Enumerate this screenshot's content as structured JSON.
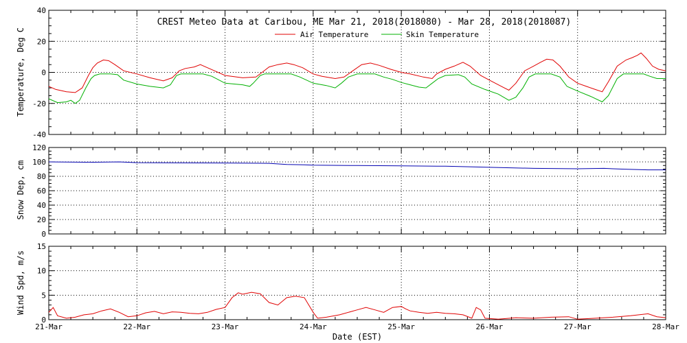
{
  "chart_data": [
    {
      "type": "line",
      "title": "CREST Meteo Data at Caribou, ME   Mar 21, 2018(2018080) - Mar 28, 2018(2018087)",
      "ylabel": "Temperature, Deg C",
      "ylim": [
        -40,
        40
      ],
      "yticks": [
        -40,
        -20,
        0,
        20,
        40
      ],
      "grid": true,
      "legend_position": "top-center",
      "x_domain": [
        0,
        7
      ],
      "series": [
        {
          "name": "Air Temperature",
          "color": "#e00000",
          "points": [
            [
              0,
              -9
            ],
            [
              0.08,
              -11
            ],
            [
              0.2,
              -12.5
            ],
            [
              0.3,
              -13
            ],
            [
              0.38,
              -10
            ],
            [
              0.45,
              -2
            ],
            [
              0.5,
              3
            ],
            [
              0.55,
              6
            ],
            [
              0.62,
              8
            ],
            [
              0.68,
              7.5
            ],
            [
              0.75,
              5
            ],
            [
              0.85,
              1
            ],
            [
              1,
              -1
            ],
            [
              1.15,
              -3.5
            ],
            [
              1.3,
              -5.5
            ],
            [
              1.4,
              -3.5
            ],
            [
              1.48,
              1
            ],
            [
              1.55,
              2.5
            ],
            [
              1.65,
              3.5
            ],
            [
              1.72,
              5
            ],
            [
              1.8,
              3
            ],
            [
              1.88,
              1
            ],
            [
              2,
              -2
            ],
            [
              2.2,
              -3.5
            ],
            [
              2.35,
              -3
            ],
            [
              2.42,
              0
            ],
            [
              2.5,
              3.5
            ],
            [
              2.6,
              5
            ],
            [
              2.7,
              6
            ],
            [
              2.78,
              5
            ],
            [
              2.88,
              3
            ],
            [
              3,
              -1
            ],
            [
              3.1,
              -2.5
            ],
            [
              3.25,
              -4
            ],
            [
              3.35,
              -3
            ],
            [
              3.45,
              1
            ],
            [
              3.55,
              5
            ],
            [
              3.65,
              6
            ],
            [
              3.75,
              4.5
            ],
            [
              3.88,
              2
            ],
            [
              4,
              0
            ],
            [
              4.1,
              -1
            ],
            [
              4.25,
              -3
            ],
            [
              4.35,
              -4
            ],
            [
              4.4,
              -1
            ],
            [
              4.5,
              2
            ],
            [
              4.6,
              4
            ],
            [
              4.7,
              6.5
            ],
            [
              4.78,
              4
            ],
            [
              4.9,
              -2
            ],
            [
              5,
              -5
            ],
            [
              5.1,
              -8
            ],
            [
              5.22,
              -11.5
            ],
            [
              5.3,
              -7
            ],
            [
              5.4,
              1
            ],
            [
              5.5,
              4
            ],
            [
              5.58,
              6.5
            ],
            [
              5.65,
              8.5
            ],
            [
              5.72,
              8
            ],
            [
              5.8,
              4
            ],
            [
              5.9,
              -3
            ],
            [
              6,
              -7
            ],
            [
              6.1,
              -9
            ],
            [
              6.2,
              -11
            ],
            [
              6.28,
              -12.5
            ],
            [
              6.35,
              -6
            ],
            [
              6.45,
              4
            ],
            [
              6.55,
              8
            ],
            [
              6.62,
              9.5
            ],
            [
              6.68,
              11
            ],
            [
              6.72,
              12.5
            ],
            [
              6.78,
              9
            ],
            [
              6.85,
              4
            ],
            [
              6.92,
              2
            ],
            [
              7,
              1
            ]
          ]
        },
        {
          "name": "Skin Temperature",
          "color": "#00b000",
          "points": [
            [
              0,
              -17
            ],
            [
              0.1,
              -19.5
            ],
            [
              0.2,
              -19
            ],
            [
              0.25,
              -18
            ],
            [
              0.3,
              -20
            ],
            [
              0.35,
              -18
            ],
            [
              0.42,
              -10
            ],
            [
              0.48,
              -4
            ],
            [
              0.52,
              -2
            ],
            [
              0.58,
              -1
            ],
            [
              0.7,
              -1
            ],
            [
              0.78,
              -1.5
            ],
            [
              0.85,
              -5
            ],
            [
              1,
              -7.5
            ],
            [
              1.15,
              -9
            ],
            [
              1.3,
              -10
            ],
            [
              1.38,
              -8
            ],
            [
              1.45,
              -2
            ],
            [
              1.5,
              -1
            ],
            [
              1.75,
              -1
            ],
            [
              1.85,
              -2.5
            ],
            [
              2,
              -7
            ],
            [
              2.2,
              -8
            ],
            [
              2.28,
              -9
            ],
            [
              2.32,
              -7
            ],
            [
              2.4,
              -2
            ],
            [
              2.45,
              -1
            ],
            [
              2.75,
              -1
            ],
            [
              2.85,
              -3
            ],
            [
              3,
              -7
            ],
            [
              3.15,
              -8.5
            ],
            [
              3.25,
              -10
            ],
            [
              3.32,
              -7
            ],
            [
              3.4,
              -3
            ],
            [
              3.5,
              -1
            ],
            [
              3.7,
              -1
            ],
            [
              3.8,
              -3
            ],
            [
              3.9,
              -4.5
            ],
            [
              4,
              -6.5
            ],
            [
              4.1,
              -8
            ],
            [
              4.2,
              -9.5
            ],
            [
              4.28,
              -10
            ],
            [
              4.35,
              -7
            ],
            [
              4.42,
              -4
            ],
            [
              4.5,
              -2
            ],
            [
              4.65,
              -1.5
            ],
            [
              4.72,
              -3
            ],
            [
              4.8,
              -7.5
            ],
            [
              4.95,
              -11
            ],
            [
              5.1,
              -14
            ],
            [
              5.22,
              -18
            ],
            [
              5.3,
              -16
            ],
            [
              5.38,
              -10
            ],
            [
              5.45,
              -3
            ],
            [
              5.52,
              -1
            ],
            [
              5.7,
              -1
            ],
            [
              5.8,
              -3
            ],
            [
              5.88,
              -9
            ],
            [
              6,
              -12
            ],
            [
              6.15,
              -15.5
            ],
            [
              6.28,
              -19
            ],
            [
              6.35,
              -15
            ],
            [
              6.45,
              -4
            ],
            [
              6.52,
              -1
            ],
            [
              6.75,
              -1
            ],
            [
              6.82,
              -2.5
            ],
            [
              6.9,
              -4
            ],
            [
              7,
              -4
            ]
          ]
        }
      ]
    },
    {
      "type": "line",
      "ylabel": "Snow Dep, cm",
      "ylim": [
        0,
        120
      ],
      "yticks": [
        0,
        20,
        40,
        60,
        80,
        100,
        120
      ],
      "grid": true,
      "x_domain": [
        0,
        7
      ],
      "series": [
        {
          "color": "#0000b0",
          "points": [
            [
              0,
              100
            ],
            [
              0.5,
              99.5
            ],
            [
              0.8,
              100
            ],
            [
              1,
              99
            ],
            [
              2,
              98.5
            ],
            [
              2.5,
              98
            ],
            [
              2.7,
              96.5
            ],
            [
              2.9,
              96
            ],
            [
              3,
              95.5
            ],
            [
              3.5,
              95
            ],
            [
              4,
              94.5
            ],
            [
              4.5,
              94
            ],
            [
              5,
              92.5
            ],
            [
              5.5,
              91
            ],
            [
              6,
              90.5
            ],
            [
              6.3,
              91
            ],
            [
              6.5,
              90
            ],
            [
              6.8,
              89
            ],
            [
              7,
              89
            ]
          ]
        }
      ]
    },
    {
      "type": "line",
      "ylabel": "Wind Spd, m/s",
      "xlabel": "Date (EST)",
      "ylim": [
        0,
        15
      ],
      "yticks": [
        0,
        5,
        10,
        15
      ],
      "grid": true,
      "x_domain": [
        0,
        7
      ],
      "categories": [
        "21-Mar",
        "22-Mar",
        "23-Mar",
        "24-Mar",
        "25-Mar",
        "26-Mar",
        "27-Mar",
        "28-Mar"
      ],
      "series": [
        {
          "color": "#e00000",
          "points": [
            [
              0,
              1.5
            ],
            [
              0.05,
              2.5
            ],
            [
              0.1,
              0.8
            ],
            [
              0.2,
              0.3
            ],
            [
              0.3,
              0.5
            ],
            [
              0.4,
              1
            ],
            [
              0.5,
              1.2
            ],
            [
              0.6,
              1.8
            ],
            [
              0.7,
              2.2
            ],
            [
              0.8,
              1.5
            ],
            [
              0.9,
              0.6
            ],
            [
              1,
              0.8
            ],
            [
              1.1,
              1.4
            ],
            [
              1.2,
              1.7
            ],
            [
              1.3,
              1.2
            ],
            [
              1.4,
              1.6
            ],
            [
              1.5,
              1.5
            ],
            [
              1.6,
              1.3
            ],
            [
              1.7,
              1.2
            ],
            [
              1.8,
              1.5
            ],
            [
              1.9,
              2.1
            ],
            [
              2,
              2.5
            ],
            [
              2.08,
              4.5
            ],
            [
              2.15,
              5.5
            ],
            [
              2.2,
              5.2
            ],
            [
              2.3,
              5.6
            ],
            [
              2.4,
              5.3
            ],
            [
              2.5,
              3.5
            ],
            [
              2.6,
              3
            ],
            [
              2.7,
              4.5
            ],
            [
              2.8,
              4.8
            ],
            [
              2.9,
              4.5
            ],
            [
              3,
              1.5
            ],
            [
              3.05,
              0.3
            ],
            [
              3.15,
              0.5
            ],
            [
              3.3,
              1
            ],
            [
              3.5,
              2
            ],
            [
              3.6,
              2.5
            ],
            [
              3.7,
              2
            ],
            [
              3.8,
              1.5
            ],
            [
              3.9,
              2.5
            ],
            [
              4,
              2.7
            ],
            [
              4.05,
              2.2
            ],
            [
              4.1,
              1.8
            ],
            [
              4.2,
              1.5
            ],
            [
              4.3,
              1.3
            ],
            [
              4.4,
              1.5
            ],
            [
              4.5,
              1.3
            ],
            [
              4.6,
              1.2
            ],
            [
              4.7,
              1
            ],
            [
              4.8,
              0.3
            ],
            [
              4.85,
              2.5
            ],
            [
              4.9,
              2
            ],
            [
              4.95,
              0.3
            ],
            [
              5.1,
              0.1
            ],
            [
              5.3,
              0.4
            ],
            [
              5.5,
              0.3
            ],
            [
              5.7,
              0.5
            ],
            [
              5.9,
              0.6
            ],
            [
              6,
              0.1
            ],
            [
              6.2,
              0.3
            ],
            [
              6.4,
              0.5
            ],
            [
              6.6,
              0.8
            ],
            [
              6.8,
              1.2
            ],
            [
              6.9,
              0.6
            ],
            [
              7,
              0.4
            ]
          ]
        }
      ]
    }
  ]
}
